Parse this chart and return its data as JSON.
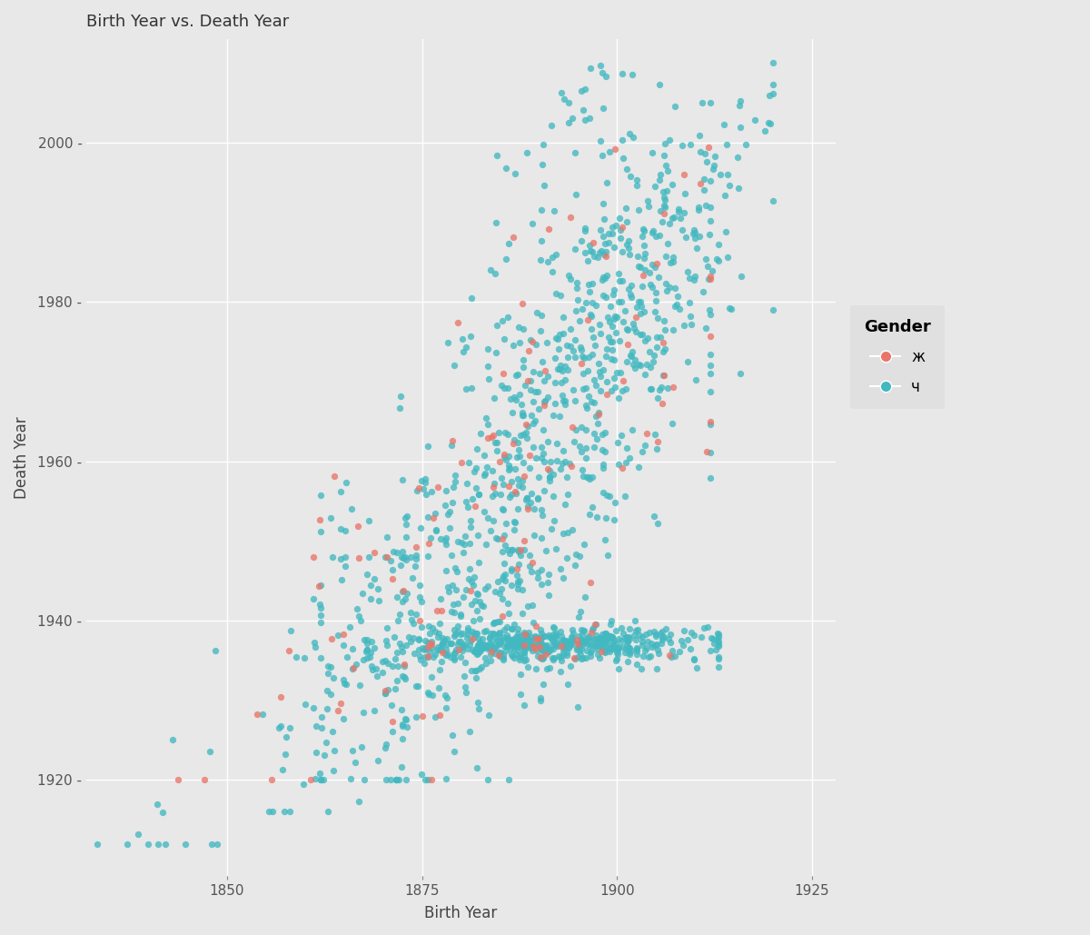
{
  "title": "Birth Year vs. Death Year",
  "xlabel": "Birth Year",
  "ylabel": "Death Year",
  "color_female": "#E8756A",
  "color_male": "#42B8C0",
  "legend_title": "Gender",
  "legend_female": "ж",
  "legend_male": "ч",
  "bg_color": "#E8E8E8",
  "xlim": [
    1832,
    1928
  ],
  "ylim": [
    1908,
    2013
  ],
  "xticks": [
    1850,
    1875,
    1900,
    1925
  ],
  "yticks": [
    1920,
    1940,
    1960,
    1980,
    2000
  ],
  "alpha": 0.78,
  "marker_size": 28,
  "edge_width": 0.0
}
